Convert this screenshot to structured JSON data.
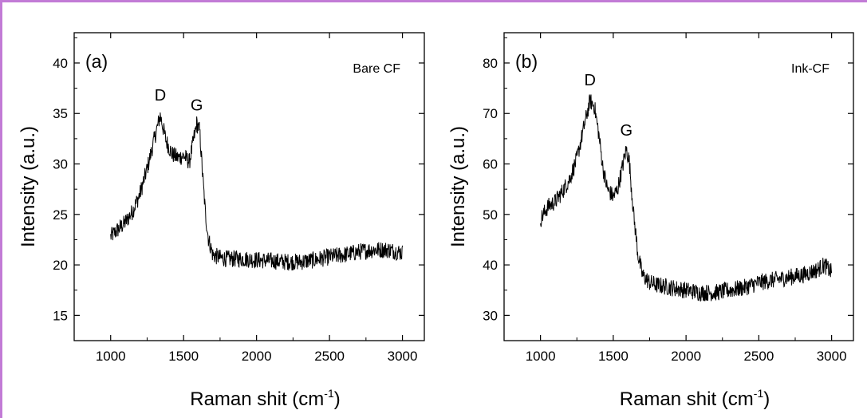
{
  "chart_data": [
    {
      "type": "line",
      "panel": "(a)",
      "sample": "Bare CF",
      "xlabel": "Raman shit",
      "xunit": "cm",
      "xunit_sup": "-1",
      "ylabel": "Intensity (a.u.)",
      "xlim": [
        750,
        3150
      ],
      "ylim": [
        12.5,
        43
      ],
      "xticks": [
        1000,
        1500,
        2000,
        2500,
        3000
      ],
      "yticks": [
        15,
        20,
        25,
        30,
        35,
        40
      ],
      "peaks": [
        {
          "label": "D",
          "x": 1340,
          "y": 35.5
        },
        {
          "label": "G",
          "x": 1590,
          "y": 34.5
        }
      ],
      "series": [
        {
          "x": [
            1000,
            1050,
            1100,
            1150,
            1200,
            1250,
            1300,
            1340,
            1380,
            1420,
            1460,
            1500,
            1540,
            1570,
            1590,
            1610,
            1630,
            1650,
            1670,
            1700,
            1750,
            1800,
            1900,
            2000,
            2100,
            2200,
            2300,
            2400,
            2500,
            2600,
            2700,
            2800,
            2900,
            3000
          ],
          "y": [
            22.8,
            23.5,
            24.2,
            25.3,
            27.0,
            29.5,
            32.5,
            34.8,
            32.3,
            31.0,
            30.6,
            30.8,
            30.2,
            32.5,
            34.0,
            33.3,
            29.0,
            25.0,
            22.6,
            21.0,
            20.7,
            20.6,
            20.6,
            20.5,
            20.4,
            20.3,
            20.3,
            20.5,
            20.8,
            21.0,
            21.3,
            21.5,
            21.5,
            21.2
          ]
        }
      ]
    },
    {
      "type": "line",
      "panel": "(b)",
      "sample": "Ink-CF",
      "xlabel": "Raman shit",
      "xunit": "cm",
      "xunit_sup": "-1",
      "ylabel": "Intensity (a.u.)",
      "xlim": [
        750,
        3150
      ],
      "ylim": [
        25,
        86
      ],
      "xticks": [
        1000,
        1500,
        2000,
        2500,
        3000
      ],
      "yticks": [
        30,
        40,
        50,
        60,
        70,
        80
      ],
      "peaks": [
        {
          "label": "D",
          "x": 1340,
          "y": 74
        },
        {
          "label": "G",
          "x": 1590,
          "y": 64
        }
      ],
      "series": [
        {
          "x": [
            1000,
            1050,
            1100,
            1150,
            1200,
            1250,
            1300,
            1340,
            1370,
            1400,
            1430,
            1460,
            1500,
            1530,
            1560,
            1590,
            1610,
            1640,
            1670,
            1700,
            1750,
            1800,
            1900,
            2000,
            2100,
            2200,
            2300,
            2400,
            2500,
            2600,
            2700,
            2800,
            2900,
            2950,
            3000
          ],
          "y": [
            49.0,
            51.5,
            52.5,
            54.5,
            57.0,
            61.0,
            67.5,
            72.5,
            71.5,
            66.0,
            59.0,
            55.0,
            53.5,
            55.0,
            59.0,
            63.0,
            60.5,
            50.0,
            42.0,
            38.0,
            36.5,
            36.0,
            35.5,
            35.0,
            34.5,
            34.5,
            35.0,
            35.5,
            36.5,
            37.0,
            37.5,
            38.0,
            39.0,
            40.0,
            38.5
          ]
        }
      ]
    }
  ]
}
